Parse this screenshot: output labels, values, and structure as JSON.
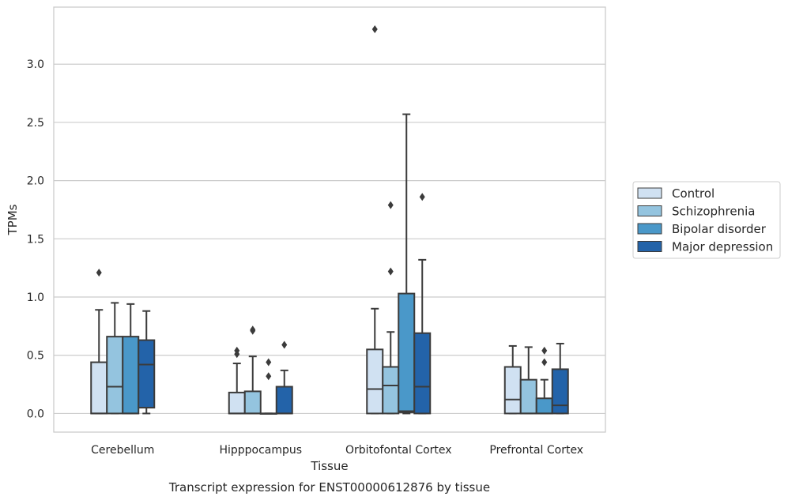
{
  "chart_data": {
    "type": "box",
    "caption": "Transcript expression for ENST00000612876 by tissue",
    "xlabel": "Tissue",
    "ylabel": "TPMs",
    "ylim": [
      -0.16,
      3.49
    ],
    "yticks": [
      0.0,
      0.5,
      1.0,
      1.5,
      2.0,
      2.5,
      3.0
    ],
    "ytick_labels": [
      "0.0",
      "0.5",
      "1.0",
      "1.5",
      "2.0",
      "2.5",
      "3.0"
    ],
    "grid": "horizontal",
    "legend_position": "right",
    "categories": [
      "Cerebellum",
      "Hipppocampus",
      "Orbitofontal Cortex",
      "Prefrontal Cortex"
    ],
    "series": [
      {
        "name": "Control",
        "color": "#d0e1f2",
        "boxes": [
          {
            "q1": 0.0,
            "median": 0.0,
            "q3": 0.44,
            "whisker_low": 0.0,
            "whisker_high": 0.89,
            "outliers": [
              1.21
            ]
          },
          {
            "q1": 0.0,
            "median": 0.0,
            "q3": 0.18,
            "whisker_low": 0.0,
            "whisker_high": 0.43,
            "outliers": [
              0.51,
              0.54
            ]
          },
          {
            "q1": 0.0,
            "median": 0.21,
            "q3": 0.55,
            "whisker_low": 0.0,
            "whisker_high": 0.9,
            "outliers": [
              3.3
            ]
          },
          {
            "q1": 0.0,
            "median": 0.12,
            "q3": 0.4,
            "whisker_low": 0.0,
            "whisker_high": 0.58,
            "outliers": []
          }
        ]
      },
      {
        "name": "Schizophrenia",
        "color": "#94c4df",
        "boxes": [
          {
            "q1": 0.0,
            "median": 0.23,
            "q3": 0.66,
            "whisker_low": 0.0,
            "whisker_high": 0.95,
            "outliers": []
          },
          {
            "q1": 0.0,
            "median": 0.0,
            "q3": 0.19,
            "whisker_low": 0.0,
            "whisker_high": 0.49,
            "outliers": [
              0.71,
              0.72
            ]
          },
          {
            "q1": 0.0,
            "median": 0.24,
            "q3": 0.4,
            "whisker_low": 0.0,
            "whisker_high": 0.7,
            "outliers": [
              1.22,
              1.79
            ]
          },
          {
            "q1": 0.0,
            "median": 0.0,
            "q3": 0.29,
            "whisker_low": 0.0,
            "whisker_high": 0.57,
            "outliers": []
          }
        ]
      },
      {
        "name": "Bipolar disorder",
        "color": "#4a98c9",
        "boxes": [
          {
            "q1": 0.0,
            "median": 0.0,
            "q3": 0.66,
            "whisker_low": 0.0,
            "whisker_high": 0.94,
            "outliers": []
          },
          {
            "q1": 0.0,
            "median": 0.0,
            "q3": 0.0,
            "whisker_low": 0.0,
            "whisker_high": 0.0,
            "outliers": [
              0.32,
              0.44
            ]
          },
          {
            "q1": 0.01,
            "median": 0.02,
            "q3": 1.03,
            "whisker_low": 0.0,
            "whisker_high": 2.57,
            "outliers": []
          },
          {
            "q1": 0.0,
            "median": 0.0,
            "q3": 0.13,
            "whisker_low": 0.0,
            "whisker_high": 0.29,
            "outliers": [
              0.44,
              0.54
            ]
          }
        ]
      },
      {
        "name": "Major depression",
        "color": "#2363a9",
        "boxes": [
          {
            "q1": 0.05,
            "median": 0.42,
            "q3": 0.63,
            "whisker_low": 0.0,
            "whisker_high": 0.88,
            "outliers": []
          },
          {
            "q1": 0.0,
            "median": 0.0,
            "q3": 0.23,
            "whisker_low": 0.0,
            "whisker_high": 0.37,
            "outliers": [
              0.59
            ]
          },
          {
            "q1": 0.0,
            "median": 0.23,
            "q3": 0.69,
            "whisker_low": 0.0,
            "whisker_high": 1.32,
            "outliers": [
              1.86
            ]
          },
          {
            "q1": 0.0,
            "median": 0.07,
            "q3": 0.38,
            "whisker_low": 0.0,
            "whisker_high": 0.6,
            "outliers": []
          }
        ]
      }
    ]
  }
}
